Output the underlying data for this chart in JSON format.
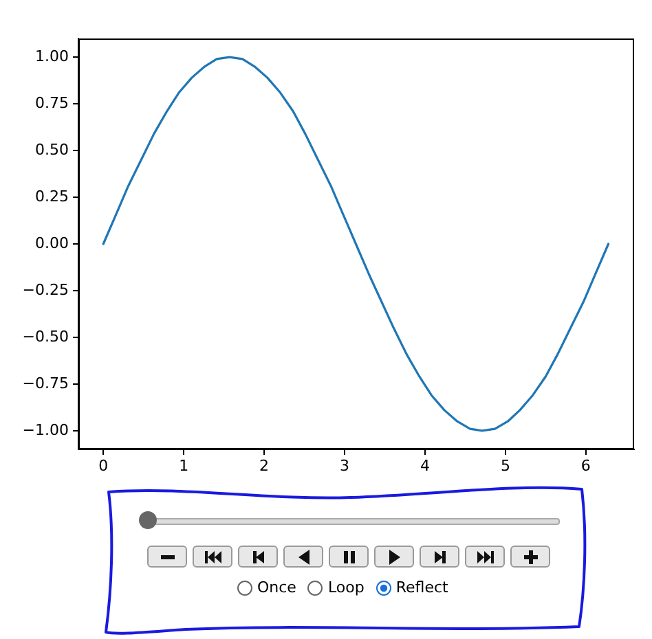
{
  "chart_data": {
    "type": "line",
    "x": [
      0,
      0.16,
      0.31,
      0.47,
      0.63,
      0.79,
      0.94,
      1.1,
      1.26,
      1.41,
      1.57,
      1.73,
      1.88,
      2.04,
      2.2,
      2.36,
      2.51,
      2.67,
      2.83,
      2.98,
      3.14,
      3.3,
      3.46,
      3.61,
      3.77,
      3.93,
      4.08,
      4.24,
      4.4,
      4.56,
      4.71,
      4.87,
      5.03,
      5.18,
      5.34,
      5.5,
      5.65,
      5.81,
      5.97,
      6.12,
      6.28
    ],
    "series": [
      {
        "color": "#1f77b4",
        "values": [
          0,
          0.16,
          0.31,
          0.45,
          0.59,
          0.71,
          0.81,
          0.89,
          0.95,
          0.99,
          1,
          0.99,
          0.95,
          0.89,
          0.81,
          0.71,
          0.59,
          0.45,
          0.31,
          0.16,
          0,
          -0.16,
          -0.31,
          -0.45,
          -0.59,
          -0.71,
          -0.81,
          -0.89,
          -0.95,
          -0.99,
          -1,
          -0.99,
          -0.95,
          -0.89,
          -0.81,
          -0.71,
          -0.59,
          -0.45,
          -0.31,
          -0.16,
          0
        ]
      }
    ],
    "xlim": [
      -0.31,
      6.6
    ],
    "xticks": [
      0,
      1,
      2,
      3,
      4,
      5,
      6
    ],
    "ylim": [
      -1.1,
      1.1
    ],
    "yticks": [
      {
        "value": -1,
        "label": "−1.00"
      },
      {
        "value": -0.75,
        "label": "−0.75"
      },
      {
        "value": -0.5,
        "label": "−0.50"
      },
      {
        "value": -0.25,
        "label": "−0.25"
      },
      {
        "value": 0,
        "label": "0.00"
      },
      {
        "value": 0.25,
        "label": "0.25"
      },
      {
        "value": 0.5,
        "label": "0.50"
      },
      {
        "value": 0.75,
        "label": "0.75"
      },
      {
        "value": 1,
        "label": "1.00"
      }
    ],
    "marker": "none",
    "line_style": "solid",
    "annotations": [
      "Once",
      "Loop",
      "Reflect"
    ]
  }
}
